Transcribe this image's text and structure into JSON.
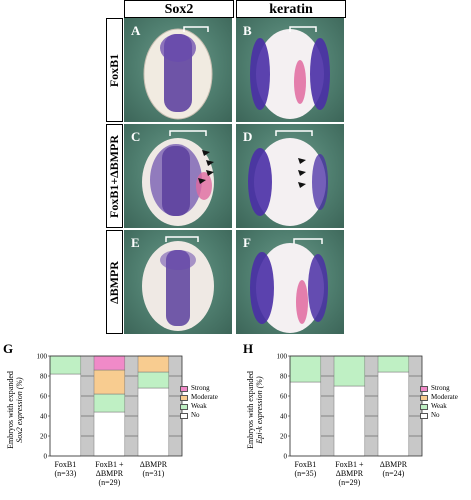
{
  "figure": {
    "column_headers": [
      "Sox2",
      "keratin"
    ],
    "row_labels": [
      "FoxB1",
      "FoxB1+ΔBMPR",
      "ΔBMPR"
    ],
    "panel_labels": [
      "A",
      "B",
      "C",
      "D",
      "E",
      "F"
    ]
  },
  "charts": {
    "G": {
      "panel_letter": "G",
      "ylabel_line1": "Embryos with expanded",
      "ylabel_line2": "Sox2 expression (%)",
      "yticks": [
        "0",
        "20",
        "40",
        "60",
        "80",
        "100"
      ],
      "categories": [
        {
          "line1": "FoxB1",
          "line2": "(n=33)",
          "line3": ""
        },
        {
          "line1": "FoxB1 +",
          "line2": "ΔBMPR",
          "line3": "(n=29)"
        },
        {
          "line1": "ΔBMPR",
          "line2": "(n=31)",
          "line3": ""
        }
      ]
    },
    "H": {
      "panel_letter": "H",
      "ylabel_line1": "Embryos with expanded",
      "ylabel_line2": "Epi-k expression (%)",
      "yticks": [
        "0",
        "20",
        "40",
        "60",
        "80",
        "100"
      ],
      "categories": [
        {
          "line1": "FoxB1",
          "line2": "(n=35)",
          "line3": ""
        },
        {
          "line1": "FoxB1 +",
          "line2": "ΔBMPR",
          "line3": "(n=29)"
        },
        {
          "line1": "ΔBMPR",
          "line2": "(n=24)",
          "line3": ""
        }
      ]
    }
  },
  "legend": {
    "items": [
      {
        "label": "Strong",
        "color": "#f08ac8"
      },
      {
        "label": "Moderate",
        "color": "#f8cc90"
      },
      {
        "label": "Weak",
        "color": "#bff0c4"
      },
      {
        "label": "No",
        "color": "#ffffff"
      }
    ]
  },
  "chart_data": [
    {
      "type": "bar",
      "stacked": true,
      "categories": [
        "FoxB1 (n=33)",
        "FoxB1 + ΔBMPR (n=29)",
        "ΔBMPR (n=31)"
      ],
      "series": [
        {
          "name": "No",
          "values": [
            82,
            44,
            68
          ]
        },
        {
          "name": "Weak",
          "values": [
            18,
            18,
            16
          ]
        },
        {
          "name": "Moderate",
          "values": [
            0,
            24,
            16
          ]
        },
        {
          "name": "Strong",
          "values": [
            0,
            14,
            0
          ]
        }
      ],
      "ylabel": "Embryos with expanded Sox2 expression (%)",
      "ylim": [
        0,
        100
      ],
      "grid": true,
      "legend": "right"
    },
    {
      "type": "bar",
      "stacked": true,
      "categories": [
        "FoxB1 (n=35)",
        "FoxB1 + ΔBMPR (n=29)",
        "ΔBMPR (n=24)"
      ],
      "series": [
        {
          "name": "No",
          "values": [
            74,
            70,
            84
          ]
        },
        {
          "name": "Weak",
          "values": [
            26,
            30,
            16
          ]
        },
        {
          "name": "Moderate",
          "values": [
            0,
            0,
            0
          ]
        },
        {
          "name": "Strong",
          "values": [
            0,
            0,
            0
          ]
        }
      ],
      "ylabel": "Embryos with expanded Epi-k expression (%)",
      "ylim": [
        0,
        100
      ],
      "grid": true,
      "legend": "right"
    }
  ]
}
